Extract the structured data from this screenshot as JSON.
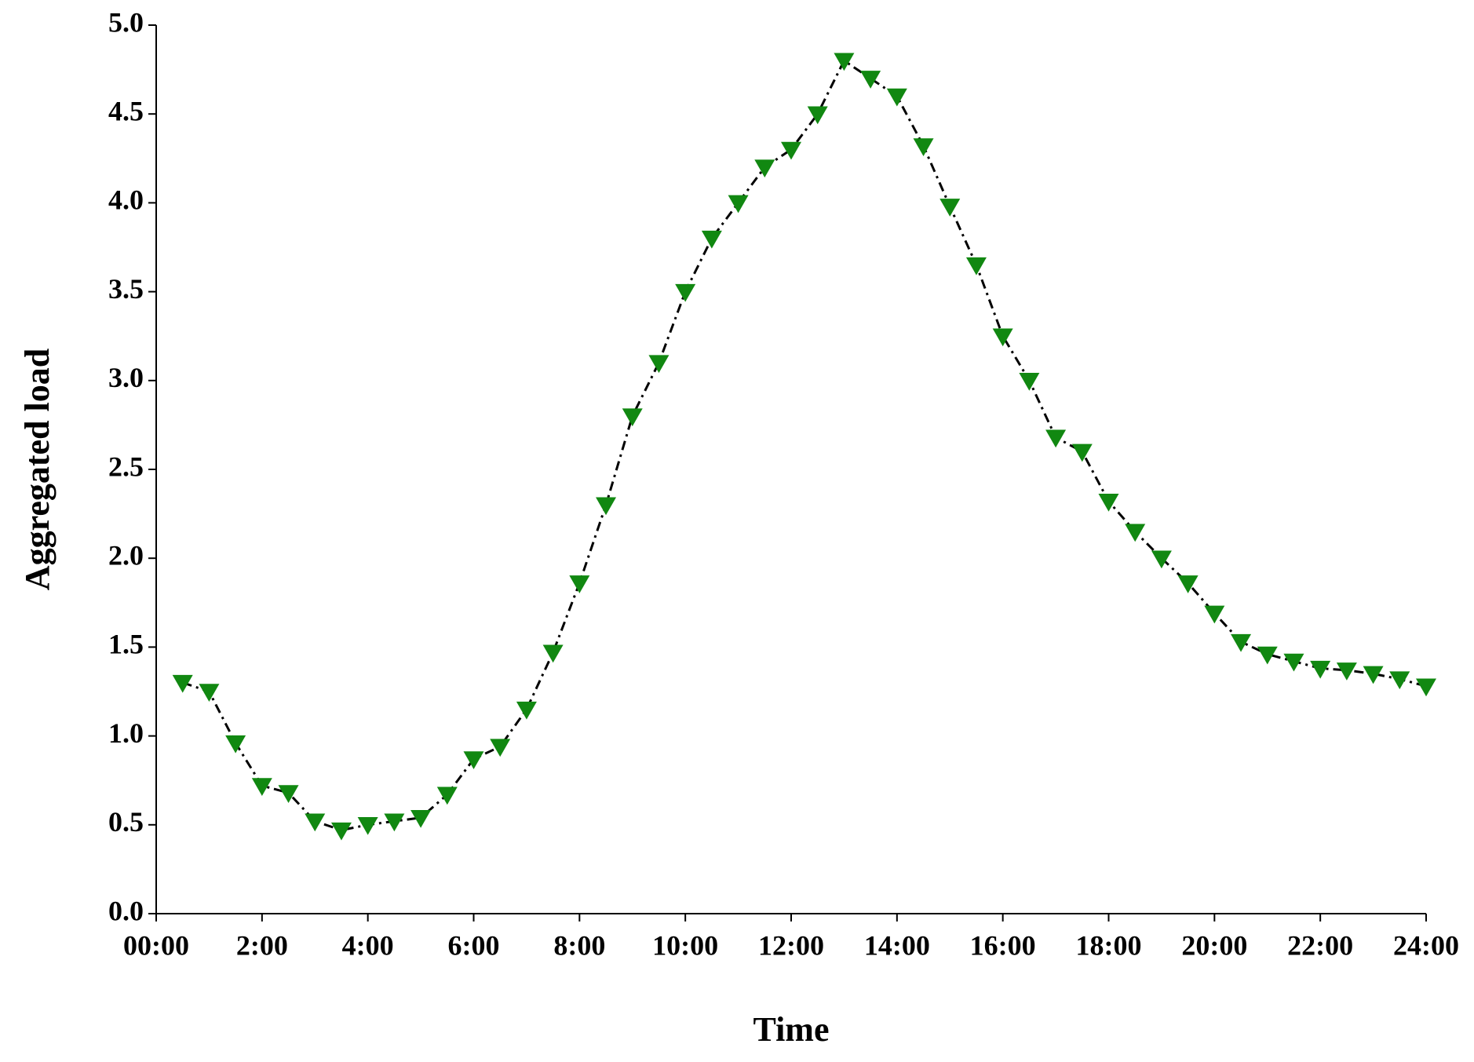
{
  "chart_data": {
    "type": "line",
    "x_label": "Time",
    "y_label": "Aggregated load",
    "x": [
      0.5,
      1,
      1.5,
      2,
      2.5,
      3,
      3.5,
      4,
      4.5,
      5,
      5.5,
      6,
      6.5,
      7,
      7.5,
      8,
      8.5,
      9,
      9.5,
      10,
      10.5,
      11,
      11.5,
      12,
      12.5,
      13,
      13.5,
      14,
      14.5,
      15,
      15.5,
      16,
      16.5,
      17,
      17.5,
      18,
      18.5,
      19,
      19.5,
      20,
      20.5,
      21,
      21.5,
      22,
      22.5,
      23,
      23.5,
      24
    ],
    "series": [
      {
        "color": "#118811",
        "line_color": "#000000",
        "values": [
          1.3,
          1.25,
          0.96,
          0.72,
          0.68,
          0.52,
          0.47,
          0.5,
          0.52,
          0.54,
          0.67,
          0.87,
          0.94,
          1.15,
          1.47,
          1.86,
          2.3,
          2.8,
          3.1,
          3.5,
          3.8,
          4.0,
          4.2,
          4.3,
          4.5,
          4.8,
          4.7,
          4.6,
          4.32,
          3.98,
          3.65,
          3.25,
          3.0,
          2.68,
          2.6,
          2.32,
          2.15,
          2.0,
          1.86,
          1.69,
          1.53,
          1.46,
          1.42,
          1.38,
          1.37,
          1.35,
          1.32,
          1.28
        ]
      }
    ],
    "xlim": [
      0,
      24
    ],
    "xticks": [
      {
        "value": 0,
        "label": "00:00"
      },
      {
        "value": 2,
        "label": "2:00"
      },
      {
        "value": 4,
        "label": "4:00"
      },
      {
        "value": 6,
        "label": "6:00"
      },
      {
        "value": 8,
        "label": "8:00"
      },
      {
        "value": 10,
        "label": "10:00"
      },
      {
        "value": 12,
        "label": "12:00"
      },
      {
        "value": 14,
        "label": "14:00"
      },
      {
        "value": 16,
        "label": "16:00"
      },
      {
        "value": 18,
        "label": "18:00"
      },
      {
        "value": 20,
        "label": "20:00"
      },
      {
        "value": 22,
        "label": "22:00"
      },
      {
        "value": 24,
        "label": "24:00"
      }
    ],
    "ylim": [
      0,
      5
    ],
    "yticks": [
      {
        "value": 0,
        "label": "0.0"
      },
      {
        "value": 0.5,
        "label": "0.5"
      },
      {
        "value": 1,
        "label": "1.0"
      },
      {
        "value": 1.5,
        "label": "1.5"
      },
      {
        "value": 2,
        "label": "2.0"
      },
      {
        "value": 2.5,
        "label": "2.5"
      },
      {
        "value": 3,
        "label": "3.0"
      },
      {
        "value": 3.5,
        "label": "3.5"
      },
      {
        "value": 4,
        "label": "4.0"
      },
      {
        "value": 4.5,
        "label": "4.5"
      },
      {
        "value": 5,
        "label": "5.0"
      }
    ],
    "grid": false
  }
}
